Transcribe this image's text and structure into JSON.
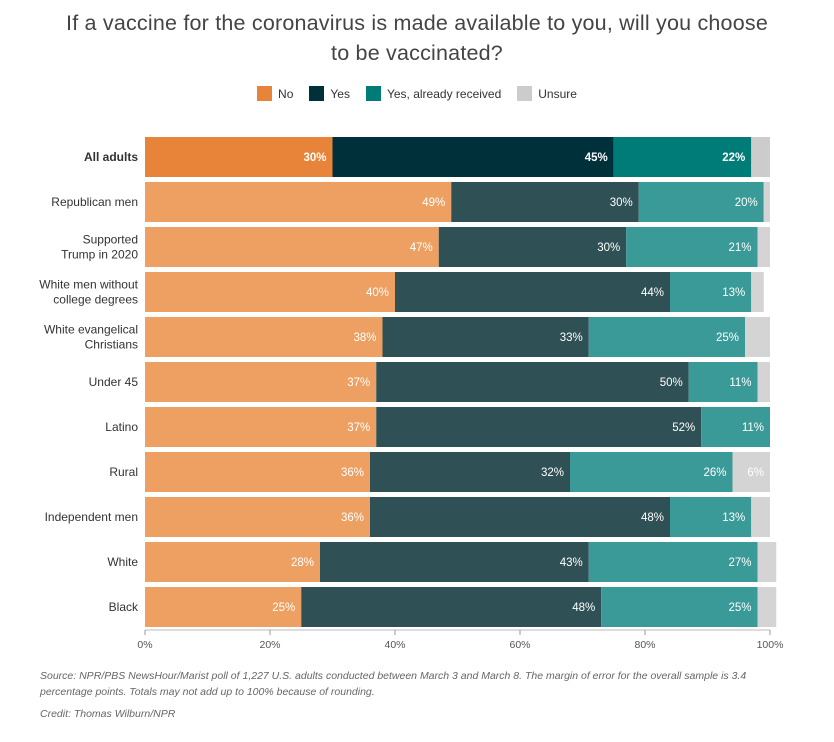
{
  "title_line1": "If a vaccine for the coronavirus is made available to you, will you choose",
  "title_line2": "to be vaccinated?",
  "legend": [
    {
      "label": "No",
      "color": "#e8833a"
    },
    {
      "label": "Yes",
      "color": "#00303a"
    },
    {
      "label": "Yes, already received",
      "color": "#007c78"
    },
    {
      "label": "Unsure",
      "color": "#cccccc"
    }
  ],
  "source": "Source: NPR/PBS NewsHour/Marist poll of 1,227 U.S. adults conducted between March 3 and March 8. The margin of error for the overall sample is 3.4 percentage points. Totals may not add up to 100% because of rounding.",
  "credit": "Credit: Thomas Wilburn/NPR",
  "chart_data": {
    "type": "bar",
    "orientation": "horizontal-stacked",
    "categories": [
      "All adults",
      "Republican men",
      "Supported Trump in 2020",
      "White men without college degrees",
      "White evangelical Christians",
      "Under 45",
      "Latino",
      "Rural",
      "Independent men",
      "White",
      "Black"
    ],
    "series": [
      {
        "name": "No",
        "values": [
          30,
          49,
          47,
          40,
          38,
          37,
          37,
          36,
          36,
          28,
          25
        ]
      },
      {
        "name": "Yes",
        "values": [
          45,
          30,
          30,
          44,
          33,
          50,
          52,
          32,
          48,
          43,
          48
        ]
      },
      {
        "name": "Yes, already received",
        "values": [
          22,
          20,
          21,
          13,
          25,
          11,
          11,
          26,
          13,
          27,
          25
        ]
      },
      {
        "name": "Unsure",
        "values": [
          3,
          1,
          2,
          2,
          4,
          2,
          0,
          6,
          3,
          3,
          3
        ]
      }
    ],
    "colors": {
      "highlight": [
        "#e8833a",
        "#00303a",
        "#007c78",
        "#cccccc"
      ],
      "normal": [
        "#eea062",
        "#2f5054",
        "#3a9a98",
        "#d4d4d4"
      ]
    },
    "highlight_row": 0,
    "label_threshold": 5,
    "xlim": [
      0,
      100
    ],
    "ticks": [
      "0%",
      "20%",
      "40%",
      "60%",
      "80%",
      "100%"
    ],
    "tick_values": [
      0,
      20,
      40,
      60,
      80,
      100
    ]
  }
}
